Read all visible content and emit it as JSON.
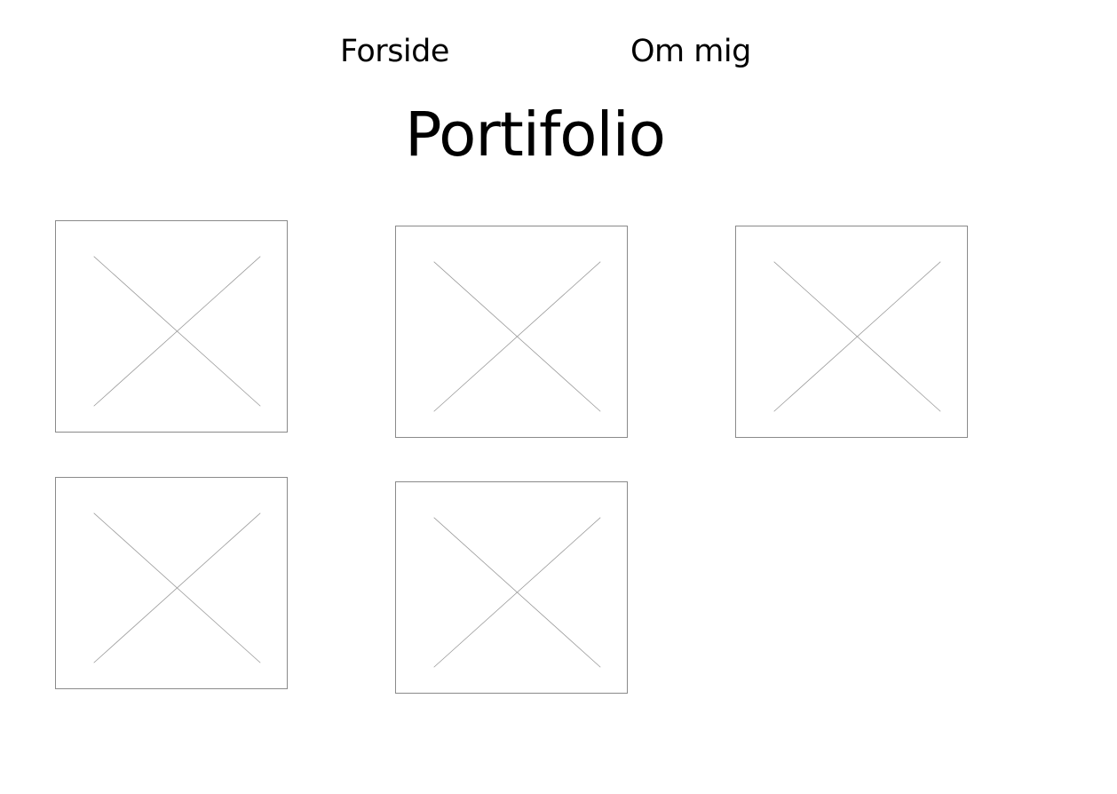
{
  "nav": {
    "items": [
      {
        "label": "Forside"
      },
      {
        "label": "Om mig"
      }
    ]
  },
  "page": {
    "title": "Portifolio"
  },
  "gallery": {
    "item_count": 5,
    "icon": "image-placeholder-icon",
    "border_color": "#8a8a8a",
    "cross_color": "#9a9a9a"
  }
}
